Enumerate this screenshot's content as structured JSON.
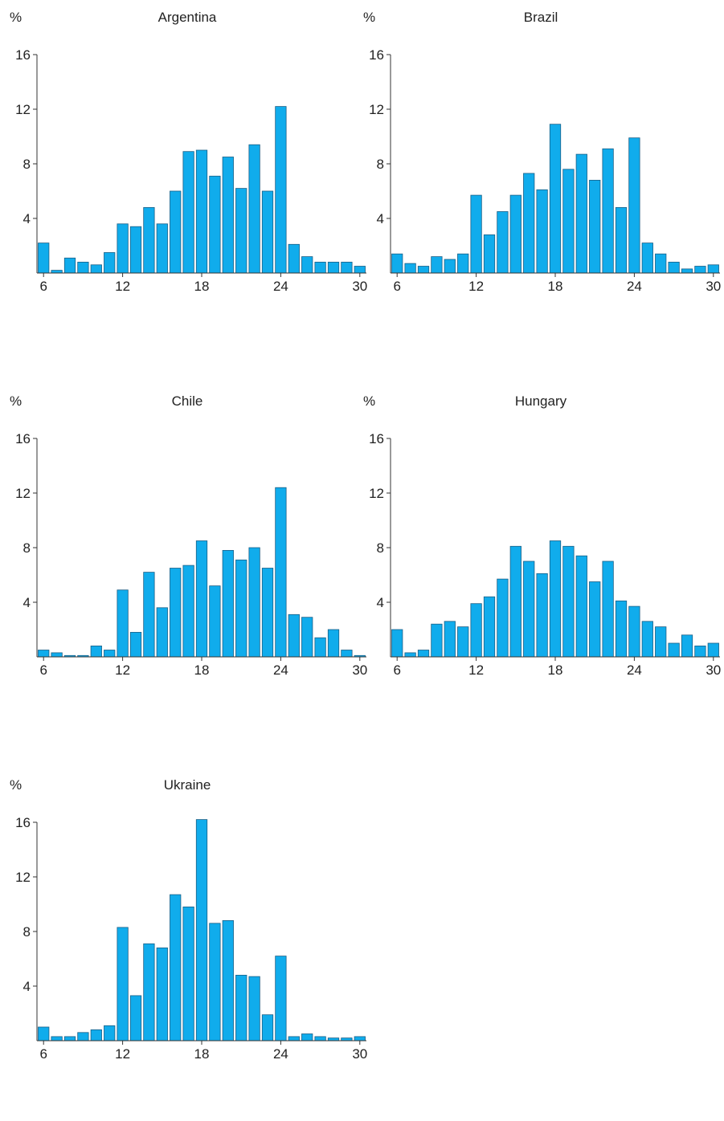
{
  "unit_label": "%",
  "colors": {
    "bar_fill": "#10acec",
    "bar_stroke": "#1a5f86",
    "axis": "#333333",
    "text": "#222222"
  },
  "chart_data": [
    {
      "type": "bar",
      "title": "Argentina",
      "x": [
        6,
        7,
        8,
        9,
        10,
        11,
        12,
        13,
        14,
        15,
        16,
        17,
        18,
        19,
        20,
        21,
        22,
        23,
        24,
        25,
        26,
        27,
        28,
        29,
        30
      ],
      "values": [
        2.2,
        0.2,
        1.1,
        0.8,
        0.6,
        1.5,
        3.6,
        3.4,
        4.8,
        3.6,
        6.0,
        8.9,
        9.0,
        7.1,
        8.5,
        6.2,
        9.4,
        6.0,
        12.2,
        2.1,
        1.2,
        0.8,
        0.8,
        0.8,
        0.5
      ],
      "xticks": [
        6,
        12,
        18,
        24,
        30
      ],
      "yticks": [
        4,
        8,
        12,
        16
      ],
      "ylim": [
        0,
        16
      ],
      "grid": false
    },
    {
      "type": "bar",
      "title": "Brazil",
      "x": [
        6,
        7,
        8,
        9,
        10,
        11,
        12,
        13,
        14,
        15,
        16,
        17,
        18,
        19,
        20,
        21,
        22,
        23,
        24,
        25,
        26,
        27,
        28,
        29,
        30
      ],
      "values": [
        1.4,
        0.7,
        0.5,
        1.2,
        1.0,
        1.4,
        5.7,
        2.8,
        4.5,
        5.7,
        7.3,
        6.1,
        10.9,
        7.6,
        8.7,
        6.8,
        9.1,
        4.8,
        9.9,
        2.2,
        1.4,
        0.8,
        0.3,
        0.5,
        0.6
      ],
      "xticks": [
        6,
        12,
        18,
        24,
        30
      ],
      "yticks": [
        4,
        8,
        12,
        16
      ],
      "ylim": [
        0,
        16
      ],
      "grid": false
    },
    {
      "type": "bar",
      "title": "Chile",
      "x": [
        6,
        7,
        8,
        9,
        10,
        11,
        12,
        13,
        14,
        15,
        16,
        17,
        18,
        19,
        20,
        21,
        22,
        23,
        24,
        25,
        26,
        27,
        28,
        29,
        30
      ],
      "values": [
        0.5,
        0.3,
        0.1,
        0.1,
        0.8,
        0.5,
        4.9,
        1.8,
        6.2,
        3.6,
        6.5,
        6.7,
        8.5,
        5.2,
        7.8,
        7.1,
        8.0,
        6.5,
        12.4,
        3.1,
        2.9,
        1.4,
        2.0,
        0.5,
        0.1
      ],
      "xticks": [
        6,
        12,
        18,
        24,
        30
      ],
      "yticks": [
        4,
        8,
        12,
        16
      ],
      "ylim": [
        0,
        16
      ],
      "grid": false
    },
    {
      "type": "bar",
      "title": "Hungary",
      "x": [
        6,
        7,
        8,
        9,
        10,
        11,
        12,
        13,
        14,
        15,
        16,
        17,
        18,
        19,
        20,
        21,
        22,
        23,
        24,
        25,
        26,
        27,
        28,
        29,
        30
      ],
      "values": [
        2.0,
        0.3,
        0.5,
        2.4,
        2.6,
        2.2,
        3.9,
        4.4,
        5.7,
        8.1,
        7.0,
        6.1,
        8.5,
        8.1,
        7.4,
        5.5,
        7.0,
        4.1,
        3.7,
        2.6,
        2.2,
        1.0,
        1.6,
        0.8,
        1.0
      ],
      "xticks": [
        6,
        12,
        18,
        24,
        30
      ],
      "yticks": [
        4,
        8,
        12,
        16
      ],
      "ylim": [
        0,
        16
      ],
      "grid": false
    },
    {
      "type": "bar",
      "title": "Ukraine",
      "x": [
        6,
        7,
        8,
        9,
        10,
        11,
        12,
        13,
        14,
        15,
        16,
        17,
        18,
        19,
        20,
        21,
        22,
        23,
        24,
        25,
        26,
        27,
        28,
        29,
        30
      ],
      "values": [
        1.0,
        0.3,
        0.3,
        0.6,
        0.8,
        1.1,
        8.3,
        3.3,
        7.1,
        6.8,
        10.7,
        9.8,
        16.2,
        8.6,
        8.8,
        4.8,
        4.7,
        1.9,
        6.2,
        0.3,
        0.5,
        0.3,
        0.2,
        0.2,
        0.3
      ],
      "xticks": [
        6,
        12,
        18,
        24,
        30
      ],
      "yticks": [
        4,
        8,
        12,
        16
      ],
      "ylim": [
        0,
        16
      ],
      "grid": false
    }
  ]
}
